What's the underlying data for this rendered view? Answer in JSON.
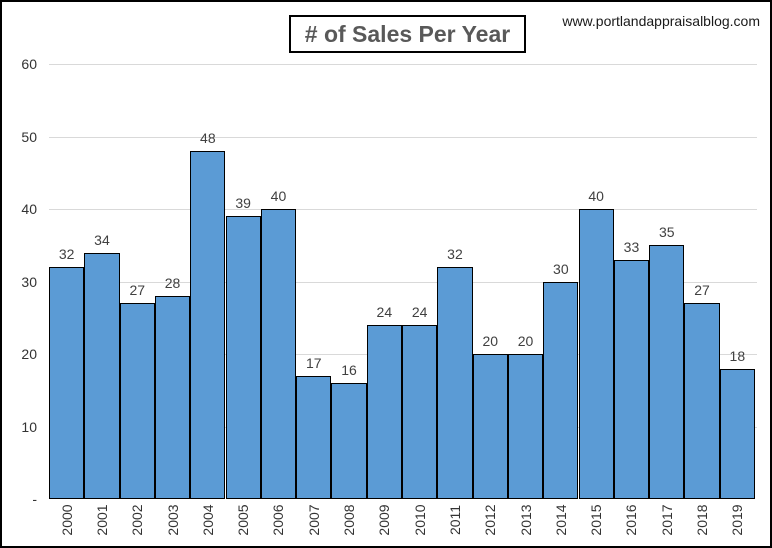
{
  "header": {
    "title": "# of Sales Per Year",
    "website": "www.portlandappraisalblog.com"
  },
  "chart_data": {
    "type": "bar",
    "title": "# of Sales Per Year",
    "categories": [
      "2000",
      "2001",
      "2002",
      "2003",
      "2004",
      "2005",
      "2006",
      "2007",
      "2008",
      "2009",
      "2010",
      "2011",
      "2012",
      "2013",
      "2014",
      "2015",
      "2016",
      "2017",
      "2018",
      "2019"
    ],
    "values": [
      32,
      34,
      27,
      28,
      48,
      39,
      40,
      17,
      16,
      24,
      24,
      32,
      20,
      20,
      30,
      40,
      33,
      35,
      27,
      18
    ],
    "xlabel": "",
    "ylabel": "",
    "ylim": [
      0,
      60
    ],
    "ytick_step": 10,
    "ytick_labels": [
      "-",
      "10",
      "20",
      "30",
      "40",
      "50",
      "60"
    ],
    "grid": true,
    "legend": false,
    "data_labels": true,
    "bar_color": "#5B9BD5",
    "bar_border_color": "#000000",
    "gridline_color": "#D9D9D9",
    "label_color": "#404040",
    "axis_label_color": "#333333",
    "title_color": "#595959"
  }
}
